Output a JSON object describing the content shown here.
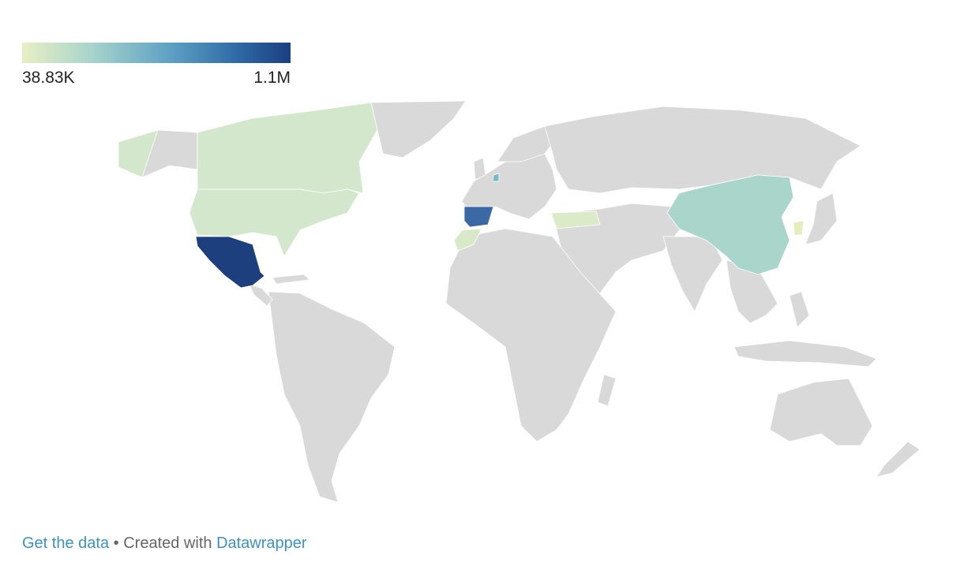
{
  "legend": {
    "min_label": "38.83K",
    "max_label": "1.1M",
    "color_stops": [
      "#e8efc4",
      "#aad5cc",
      "#5ea1c4",
      "#2f6aa6",
      "#1b3f7f"
    ]
  },
  "footer": {
    "get_data_link": "Get the data",
    "separator": "•",
    "created_with": "Created with",
    "datawrapper_link": "Datawrapper"
  },
  "map": {
    "no_data_color": "#d9d9d9",
    "highlighted_countries": [
      {
        "name": "Mexico",
        "color": "#1d3f7e"
      },
      {
        "name": "Spain",
        "color": "#3a69a5"
      },
      {
        "name": "China",
        "color": "#a9d5cb"
      },
      {
        "name": "United States",
        "color": "#d3e7cd"
      },
      {
        "name": "Canada",
        "color": "#d3e7cd"
      },
      {
        "name": "Turkey",
        "color": "#dbeac8"
      },
      {
        "name": "Morocco",
        "color": "#d8e9c8"
      },
      {
        "name": "Netherlands",
        "color": "#7fb8c7"
      },
      {
        "name": "South Korea",
        "color": "#e6eebd"
      }
    ]
  }
}
